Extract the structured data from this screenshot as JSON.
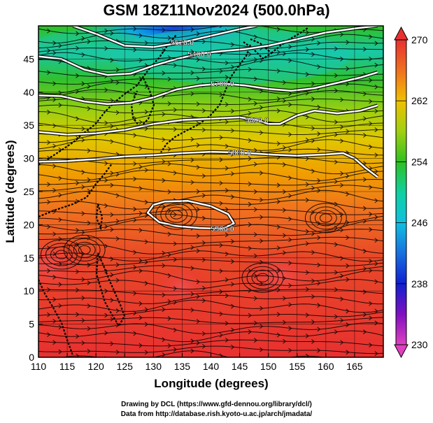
{
  "title": "GSM 18Z11Nov2024 (500.0hPa)",
  "credits": {
    "line1": "Drawing by DCL (https://www.gfd-dennou.org/library/dcl/)",
    "line2": "Data from http://database.rish.kyoto-u.ac.jp/arch/jmadata/"
  },
  "chart_data": {
    "type": "heatmap",
    "title": "GSM 18Z11Nov2024 (500.0hPa)",
    "xlabel": "Longitude (degrees)",
    "ylabel": "Latitude  (degrees)",
    "xlim": [
      110,
      170
    ],
    "ylim": [
      0,
      50
    ],
    "x_ticks": [
      110,
      115,
      120,
      125,
      130,
      135,
      140,
      145,
      150,
      155,
      160,
      165
    ],
    "y_ticks": [
      0,
      5,
      10,
      15,
      20,
      25,
      30,
      35,
      40,
      45
    ],
    "grid": true,
    "colorbar": {
      "position": "right",
      "min": 230,
      "max": 270,
      "labels": [
        230,
        238,
        246,
        254,
        262,
        270
      ],
      "colors": {
        "230": "#e040c0",
        "234": "#8010c0",
        "238": "#1020d0",
        "242": "#1870e0",
        "246": "#10c0e0",
        "250": "#10d0a0",
        "254": "#30c020",
        "258": "#a0d010",
        "262": "#f0c000",
        "266": "#f07020",
        "270": "#e83030"
      }
    },
    "contours": [
      {
        "label": "5400.0",
        "points": [
          [
            110,
            45.4
          ],
          [
            114,
            45.0
          ],
          [
            118,
            43.4
          ],
          [
            122,
            42.6
          ],
          [
            126,
            42.8
          ],
          [
            130,
            44.0
          ],
          [
            134,
            45.0
          ],
          [
            138,
            45.8
          ],
          [
            142,
            46.2
          ],
          [
            146,
            46.5
          ],
          [
            150,
            47.0
          ],
          [
            155,
            48.0
          ],
          [
            160,
            49.0
          ],
          [
            165,
            49.6
          ],
          [
            169,
            50
          ]
        ]
      },
      {
        "label": "5520.0",
        "points": [
          [
            116,
            50
          ],
          [
            120,
            48.8
          ],
          [
            125,
            47.0
          ],
          [
            130,
            46.8
          ],
          [
            135,
            47.5
          ],
          [
            140,
            48.5
          ],
          [
            145,
            49.5
          ],
          [
            148,
            50
          ]
        ]
      },
      {
        "label": "5700.0",
        "points": [
          [
            110,
            39.5
          ],
          [
            114,
            39.4
          ],
          [
            118,
            38.6
          ],
          [
            122,
            38.2
          ],
          [
            126,
            38.4
          ],
          [
            130,
            39.2
          ],
          [
            134,
            40.4
          ],
          [
            138,
            41.0
          ],
          [
            142,
            41.3
          ],
          [
            146,
            41.0
          ],
          [
            150,
            40.5
          ],
          [
            154,
            40.2
          ],
          [
            158,
            40.6
          ],
          [
            162,
            41.4
          ],
          [
            166,
            42.2
          ],
          [
            169,
            43
          ]
        ]
      },
      {
        "label": "5800.0",
        "points": [
          [
            110,
            34.0
          ],
          [
            115,
            33.6
          ],
          [
            120,
            33.8
          ],
          [
            125,
            34.3
          ],
          [
            130,
            35.2
          ],
          [
            135,
            35.8
          ],
          [
            140,
            36.0
          ],
          [
            145,
            36.2
          ],
          [
            148,
            35.8
          ],
          [
            150,
            35.2
          ],
          [
            152,
            35.2
          ],
          [
            155,
            36.5
          ],
          [
            158,
            37.2
          ],
          [
            162,
            36.8
          ],
          [
            166,
            37.2
          ],
          [
            169,
            38
          ]
        ]
      },
      {
        "label": "5880.0",
        "points": [
          [
            110,
            29.5
          ],
          [
            115,
            29.6
          ],
          [
            120,
            29.9
          ],
          [
            125,
            30.3
          ],
          [
            130,
            30.5
          ],
          [
            135,
            30.8
          ],
          [
            140,
            31.0
          ],
          [
            145,
            30.9
          ],
          [
            150,
            30.6
          ],
          [
            155,
            30.4
          ],
          [
            160,
            30.6
          ],
          [
            163,
            30.8
          ],
          [
            165,
            30.0
          ],
          [
            167,
            28.5
          ],
          [
            169,
            27.2
          ]
        ]
      },
      {
        "label": "5900.0",
        "closed": true,
        "points": [
          [
            132,
            23.5
          ],
          [
            136,
            23.6
          ],
          [
            140,
            22.8
          ],
          [
            143,
            21.6
          ],
          [
            144,
            20.2
          ],
          [
            142,
            19.4
          ],
          [
            138,
            19.5
          ],
          [
            134,
            19.8
          ],
          [
            131,
            20.4
          ],
          [
            129,
            21.8
          ],
          [
            130,
            23.0
          ]
        ]
      }
    ],
    "features": {
      "high_centers": [
        [
          134,
          21.5
        ]
      ],
      "low_centers": [
        [
          114,
          15.5
        ],
        [
          118,
          16.2
        ],
        [
          160,
          21.0
        ],
        [
          149,
          12.0
        ]
      ]
    }
  }
}
